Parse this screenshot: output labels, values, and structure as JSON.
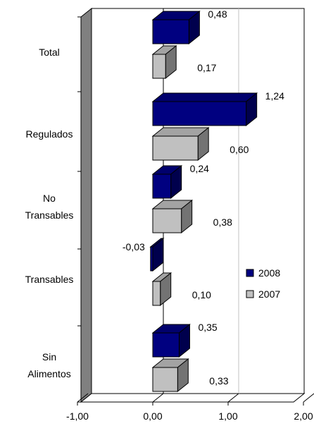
{
  "chart_data": {
    "type": "bar",
    "orientation": "horizontal",
    "style": "3d",
    "categories": [
      "Total",
      "Regulados",
      "No\nTransables",
      "Transables",
      "Sin\nAlimentos"
    ],
    "series": [
      {
        "name": "2008",
        "values": [
          0.48,
          1.24,
          0.24,
          -0.03,
          0.35
        ],
        "labels": [
          "0,48",
          "1,24",
          "0,24",
          "-0,03",
          "0,35"
        ]
      },
      {
        "name": "2007",
        "values": [
          0.17,
          0.6,
          0.38,
          0.1,
          0.33
        ],
        "labels": [
          "0,17",
          "0,60",
          "0,38",
          "0,10",
          "0,33"
        ]
      }
    ],
    "xlim": [
      -1.0,
      2.0
    ],
    "xticks": [
      -1.0,
      0.0,
      1.0,
      2.0
    ],
    "xtick_labels": [
      "-1,00",
      "0,00",
      "1,00",
      "2,00"
    ],
    "title": "",
    "xlabel": "",
    "ylabel": "",
    "grid": true,
    "legend": "right"
  },
  "colors": {
    "2008": "#000080",
    "2007": "#c0c0c0",
    "wall": "#808080",
    "gridline": "#c0c0c0"
  }
}
